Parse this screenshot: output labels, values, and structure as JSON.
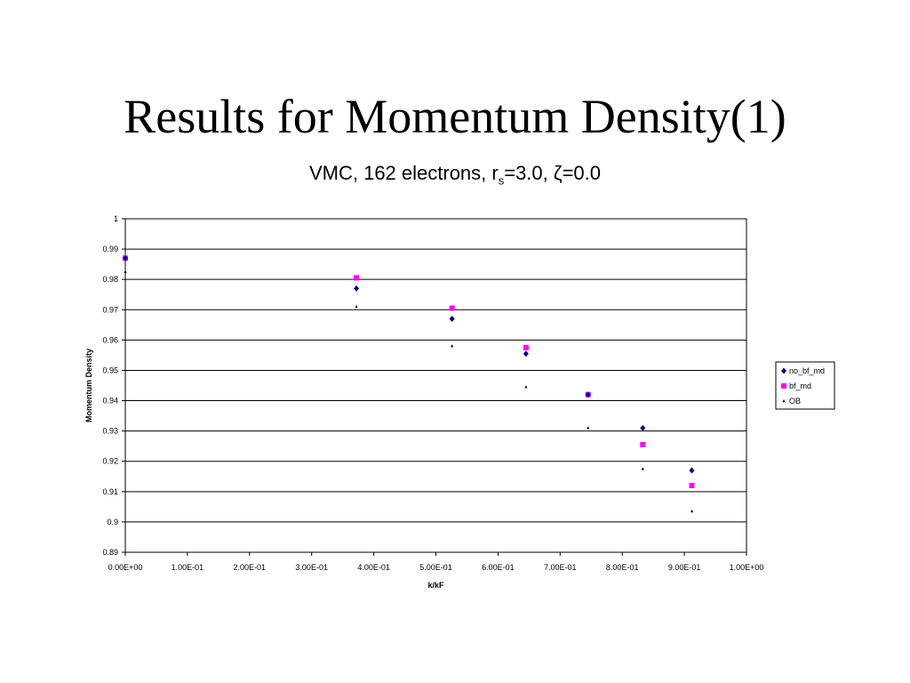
{
  "slide": {
    "title": "Results for Momentum Density(1)",
    "subtitle_prefix": "VMC, 162 electrons, r",
    "subtitle_sub": "s",
    "subtitle_suffix": "=3.0, ζ=0.0"
  },
  "chart_data": {
    "type": "scatter",
    "xlabel": "k/kF",
    "ylabel": "Momentum Density",
    "xlim": [
      0.0,
      1.0
    ],
    "ylim": [
      0.89,
      1.0
    ],
    "x_ticks": [
      "0.00E+00",
      "1.00E-01",
      "2.00E-01",
      "3.00E-01",
      "4.00E-01",
      "5.00E-01",
      "6.00E-01",
      "7.00E-01",
      "8.00E-01",
      "9.00E-01",
      "1.00E+00"
    ],
    "y_ticks": [
      "1",
      "0.99",
      "0.98",
      "0.97",
      "0.96",
      "0.95",
      "0.94",
      "0.93",
      "0.92",
      "0.91",
      "0.9",
      "0.89"
    ],
    "grid": "horizontal",
    "legend_position": "right",
    "series": [
      {
        "name": "no_bf_md",
        "marker": "diamond",
        "color": "#00007f",
        "x": [
          0.0,
          0.372,
          0.526,
          0.645,
          0.745,
          0.833,
          0.912
        ],
        "y": [
          0.987,
          0.977,
          0.967,
          0.9555,
          0.942,
          0.931,
          0.917
        ]
      },
      {
        "name": "bf_md",
        "marker": "square",
        "color": "#ff00ff",
        "x": [
          0.0,
          0.372,
          0.526,
          0.645,
          0.745,
          0.833,
          0.912
        ],
        "y": [
          0.987,
          0.9805,
          0.9705,
          0.9575,
          0.942,
          0.9255,
          0.912
        ]
      },
      {
        "name": "OB",
        "marker": "triangle",
        "color": "#000000",
        "x": [
          0.0,
          0.372,
          0.526,
          0.645,
          0.745,
          0.833,
          0.912
        ],
        "y": [
          0.9825,
          0.971,
          0.958,
          0.9445,
          0.931,
          0.9175,
          0.9035
        ]
      }
    ]
  }
}
